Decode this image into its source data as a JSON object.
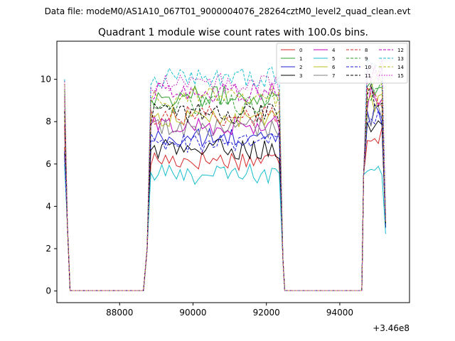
{
  "figure": {
    "suptitle": "Data file: modeM0/AS1A10_067T01_9000004076_28264cztM0_level2_quad_clean.evt"
  },
  "chart_data": {
    "type": "line",
    "title": "Quadrant 1 module wise count rates with 100.0s bins.",
    "xlabel": "",
    "ylabel": "",
    "x_offset_label": "+3.46e8",
    "xlim": [
      86290,
      95900
    ],
    "ylim": [
      -0.55,
      11.8
    ],
    "x_ticks": [
      88000,
      90000,
      92000,
      94000
    ],
    "x_tick_labels": [
      "88000",
      "90000",
      "92000",
      "94000"
    ],
    "y_ticks": [
      0,
      2,
      4,
      6,
      8,
      10
    ],
    "y_tick_labels": [
      "0",
      "2",
      "4",
      "6",
      "8",
      "10"
    ],
    "grid": false,
    "legend_position": "top-right",
    "legend_columns": 4,
    "segments": [
      {
        "start": 86500,
        "end": 86650,
        "off_end": 88700
      },
      {
        "start": 88750,
        "end": 92350,
        "off_end": 94600
      },
      {
        "start": 94650,
        "end": 95250,
        "off_end": null
      }
    ],
    "series": [
      {
        "name": "0",
        "color": "#d62728",
        "dash": "solid",
        "level": [
          7.2,
          6.2,
          7.5
        ],
        "start_value": 6.8,
        "end_value": 3.0
      },
      {
        "name": "1",
        "color": "#2ca02c",
        "dash": "solid",
        "level": [
          8.6,
          9.2,
          9.8
        ],
        "start_value": 9.5,
        "end_value": 3.2
      },
      {
        "name": "2",
        "color": "#1f1fd6",
        "dash": "solid",
        "level": [
          7.0,
          7.2,
          8.4
        ],
        "start_value": 6.6,
        "end_value": 3.1
      },
      {
        "name": "3",
        "color": "#000000",
        "dash": "solid",
        "level": [
          6.8,
          6.7,
          7.6
        ],
        "start_value": 6.5,
        "end_value": 3.0
      },
      {
        "name": "4",
        "color": "#bf00bf",
        "dash": "solid",
        "level": [
          7.5,
          7.8,
          9.2
        ],
        "start_value": 7.8,
        "end_value": 3.2
      },
      {
        "name": "5",
        "color": "#17becf",
        "dash": "solid",
        "level": [
          5.5,
          5.5,
          6.0
        ],
        "start_value": 6.0,
        "end_value": 2.7
      },
      {
        "name": "6",
        "color": "#bcbd22",
        "dash": "solid",
        "level": [
          8.0,
          8.2,
          9.0
        ],
        "start_value": 8.2,
        "end_value": 3.3
      },
      {
        "name": "7",
        "color": "#7f7f7f",
        "dash": "solid",
        "level": [
          7.7,
          7.7,
          8.2
        ],
        "start_value": 7.5,
        "end_value": 3.1
      },
      {
        "name": "8",
        "color": "#d62728",
        "dash": "dashed",
        "level": [
          8.0,
          8.3,
          9.2
        ],
        "start_value": 7.8,
        "end_value": 3.2
      },
      {
        "name": "9",
        "color": "#2ca02c",
        "dash": "dashed",
        "level": [
          8.5,
          8.8,
          9.6
        ],
        "start_value": 9.0,
        "end_value": 3.3
      },
      {
        "name": "10",
        "color": "#1f1fd6",
        "dash": "dashed",
        "level": [
          6.8,
          7.0,
          8.2
        ],
        "start_value": 6.4,
        "end_value": 3.0
      },
      {
        "name": "11",
        "color": "#000000",
        "dash": "dashed",
        "level": [
          8.5,
          8.4,
          9.3
        ],
        "start_value": 8.5,
        "end_value": 3.2
      },
      {
        "name": "12",
        "color": "#bf00bf",
        "dash": "dashed",
        "level": [
          9.2,
          9.4,
          10.2
        ],
        "start_value": 9.2,
        "end_value": 3.3
      },
      {
        "name": "13",
        "color": "#17becf",
        "dash": "dashed",
        "level": [
          9.8,
          10.1,
          10.5
        ],
        "start_value": 10.0,
        "end_value": 3.4
      },
      {
        "name": "14",
        "color": "#bcbd22",
        "dash": "dashed",
        "level": [
          8.8,
          9.2,
          10.0
        ],
        "start_value": 9.8,
        "end_value": 3.2
      },
      {
        "name": "15",
        "color": "#bf00bf",
        "dash": "dotted",
        "level": [
          9.5,
          9.8,
          10.6
        ],
        "start_value": 9.9,
        "end_value": 3.3
      }
    ]
  }
}
